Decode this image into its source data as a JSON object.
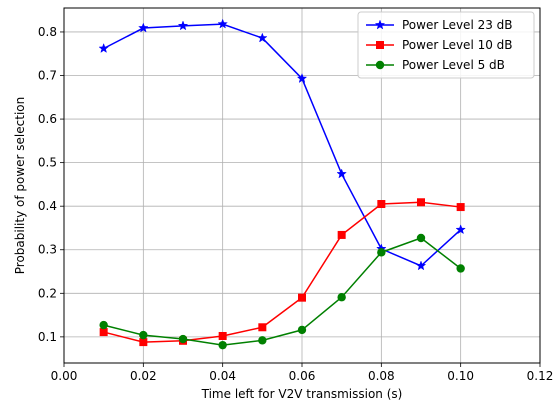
{
  "chart_data": {
    "type": "line",
    "title": "",
    "xlabel": "Time left for V2V transmission (s)",
    "ylabel": "Probability of power selection",
    "xlim": [
      0.0,
      0.12
    ],
    "ylim": [
      0.04,
      0.855
    ],
    "xticks": [
      "0.00",
      "0.02",
      "0.04",
      "0.06",
      "0.08",
      "0.10",
      "0.12"
    ],
    "yticks": [
      "0.1",
      "0.2",
      "0.3",
      "0.4",
      "0.5",
      "0.6",
      "0.7",
      "0.8"
    ],
    "grid": true,
    "legend_position": "top-right",
    "x": [
      0.01,
      0.02,
      0.03,
      0.04,
      0.05,
      0.06,
      0.07,
      0.08,
      0.09,
      0.1
    ],
    "series": [
      {
        "name": "Power Level 23 dB",
        "color": "#0000ff",
        "marker": "star",
        "values": [
          0.762,
          0.809,
          0.814,
          0.818,
          0.786,
          0.693,
          0.474,
          0.302,
          0.263,
          0.346
        ]
      },
      {
        "name": "Power Level 10 dB",
        "color": "#ff0000",
        "marker": "square",
        "values": [
          0.111,
          0.088,
          0.091,
          0.102,
          0.122,
          0.19,
          0.334,
          0.405,
          0.409,
          0.398
        ]
      },
      {
        "name": "Power Level 5 dB",
        "color": "#008000",
        "marker": "circle",
        "values": [
          0.127,
          0.104,
          0.095,
          0.081,
          0.092,
          0.116,
          0.191,
          0.294,
          0.327,
          0.257
        ]
      }
    ]
  }
}
